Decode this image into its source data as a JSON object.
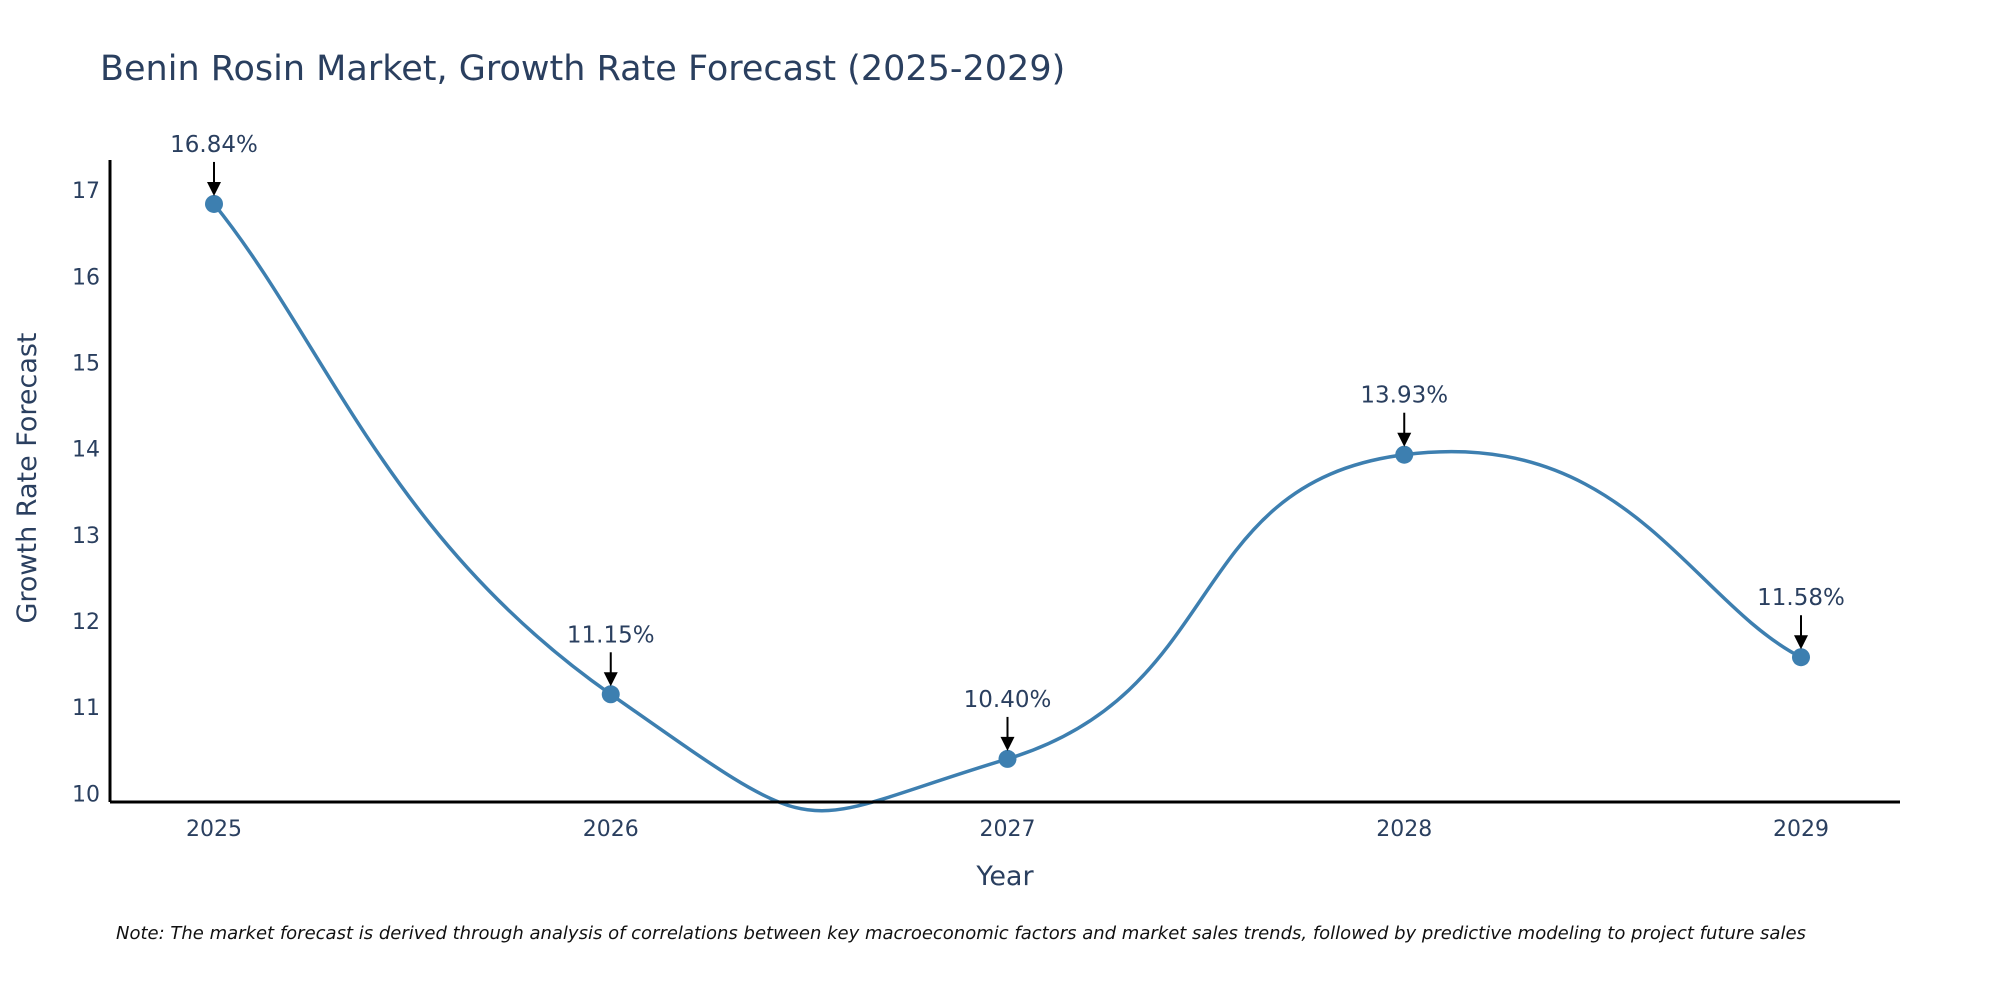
{
  "chart_data": {
    "type": "line",
    "title": "Benin Rosin Market, Growth Rate Forecast (2025-2029)",
    "xlabel": "Year",
    "ylabel": "Growth Rate Forecast",
    "categories": [
      "2025",
      "2026",
      "2027",
      "2028",
      "2029"
    ],
    "series": [
      {
        "name": "Growth Rate Forecast",
        "values": [
          16.84,
          11.15,
          10.4,
          13.93,
          11.58
        ]
      }
    ],
    "annotations": [
      "16.84%",
      "11.15%",
      "10.40%",
      "13.93%",
      "11.58%"
    ],
    "yticks": [
      "10",
      "11",
      "12",
      "13",
      "14",
      "15",
      "16",
      "17"
    ],
    "ylim": [
      9.9,
      17.35
    ],
    "grid": false,
    "line_color": "#3d7fb0",
    "note": "Note: The market forecast is derived through analysis of correlations between key macroeconomic factors and market sales trends, followed by predictive modeling to project future sales"
  }
}
